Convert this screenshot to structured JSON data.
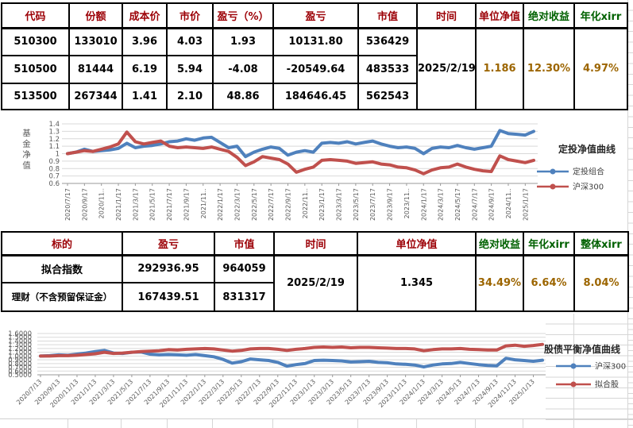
{
  "table1": {
    "headers": [
      "代码",
      "份额",
      "成本价",
      "市价",
      "盈亏（%）",
      "盈亏",
      "市值",
      "时间",
      "单位净值",
      "绝对收益",
      "年化xirr"
    ],
    "rows": [
      [
        "510300",
        "133010",
        "3.96",
        "4.03",
        "1.93",
        "10131.80",
        "536429"
      ],
      [
        "510500",
        "81444",
        "6.19",
        "5.94",
        "-4.08",
        "-20549.64",
        "483533"
      ],
      [
        "513500",
        "267344",
        "1.41",
        "2.10",
        "48.86",
        "184646.45",
        "562543"
      ]
    ],
    "merged": {
      "time": "2025/2/19",
      "unit_nav": "1.186",
      "abs_return": "12.30%",
      "xirr": "4.97%"
    }
  },
  "table2": {
    "headers": [
      "标的",
      "盈亏",
      "市值",
      "时间",
      "单位净值",
      "绝对收益",
      "年化xirr",
      "整体xirr"
    ],
    "rows": [
      [
        "拟合指数",
        "292936.95",
        "964059"
      ],
      [
        "理财（不含预留保证金）",
        "167439.51",
        "831317"
      ]
    ],
    "merged": {
      "time": "2025/2/19",
      "unit_nav": "1.345",
      "abs_return": "34.49%",
      "xirr": "6.64%",
      "overall_xirr": "8.04%"
    }
  },
  "colors": {
    "header_pink_bg": "#FFC7CE",
    "header_pink_text": "#9C0006",
    "header_green_bg": "#C6EFCE",
    "header_green_text": "#006100",
    "value_yellow_bg": "#FFEB9C",
    "value_yellow_text": "#9C6500",
    "header_cyan_bg": "#00B0F0",
    "value_lightblue_bg": "#DAE8F1",
    "series_blue": "#4F81BD",
    "series_red": "#C0504D"
  },
  "chart_data": [
    {
      "type": "line",
      "title": "定投净值曲线",
      "y_axis_title": "基金净值",
      "y_range": [
        0.6,
        1.4
      ],
      "y_ticks": [
        "1.4",
        "1.3",
        "1.2",
        "1.1",
        "1",
        "0.9",
        "0.8",
        "0.7",
        "0.6"
      ],
      "x_labels": [
        "2020/7/17",
        "2020/9/17",
        "2020/11..",
        "2021/1/17",
        "2021/3/17",
        "2021/5/17",
        "2021/7/17",
        "2021/9/17",
        "2021/11..",
        "2022/1/17",
        "2022/3/17",
        "2022/5/17",
        "2022/7/17",
        "2022/9/17",
        "2022/11..",
        "2023/1/17",
        "2023/3/17",
        "2023/5/17",
        "2023/7/17",
        "2023/9/17",
        "2023/11..",
        "2024/1/17",
        "2024/3/17",
        "2024/5/17",
        "2024/7/17",
        "2024/9/17",
        "2024/11..",
        "2025/1/17"
      ],
      "legend_position": "right",
      "grid": "horizontal",
      "series": [
        {
          "name": "定投组合",
          "color": "#4F81BD",
          "values": [
            1.0,
            1.02,
            1.06,
            1.03,
            1.04,
            1.05,
            1.07,
            1.14,
            1.08,
            1.1,
            1.11,
            1.13,
            1.16,
            1.17,
            1.2,
            1.18,
            1.21,
            1.22,
            1.15,
            1.08,
            1.1,
            0.96,
            1.02,
            1.06,
            1.09,
            1.07,
            0.98,
            1.02,
            1.04,
            1.02,
            1.14,
            1.15,
            1.14,
            1.16,
            1.13,
            1.15,
            1.17,
            1.13,
            1.1,
            1.08,
            1.09,
            1.07,
            1.0,
            1.07,
            1.09,
            1.08,
            1.11,
            1.08,
            1.06,
            1.08,
            1.1,
            1.31,
            1.27,
            1.26,
            1.25,
            1.3
          ]
        },
        {
          "name": "沪深300",
          "color": "#C0504D",
          "values": [
            1.0,
            1.02,
            1.04,
            1.03,
            1.06,
            1.09,
            1.13,
            1.29,
            1.16,
            1.13,
            1.15,
            1.17,
            1.1,
            1.08,
            1.09,
            1.08,
            1.07,
            1.09,
            1.06,
            1.03,
            0.95,
            0.84,
            0.89,
            0.96,
            0.94,
            0.92,
            0.86,
            0.75,
            0.79,
            0.82,
            0.91,
            0.92,
            0.91,
            0.9,
            0.87,
            0.88,
            0.89,
            0.86,
            0.85,
            0.82,
            0.81,
            0.78,
            0.73,
            0.78,
            0.81,
            0.82,
            0.86,
            0.82,
            0.79,
            0.77,
            0.76,
            0.97,
            0.92,
            0.9,
            0.88,
            0.91
          ]
        }
      ]
    },
    {
      "type": "line",
      "title": "股债平衡净值曲线",
      "y_range": [
        0.5,
        1.6
      ],
      "y_ticks": [
        "1.6000",
        "1.5000",
        "1.4000",
        "1.3000",
        "1.2000",
        "1.1000",
        "1.0000",
        "0.9000",
        "0.8000",
        "0.7000",
        "0.6000",
        "0.5000"
      ],
      "x_labels": [
        "2020/7/13",
        "2020/9/13",
        "2020/11/13",
        "2021/1/13",
        "2021/3/13",
        "2021/5/13",
        "2021/7/13",
        "2021/9/13",
        "2021/11/13",
        "2022/1/13",
        "2022/3/13",
        "2022/5/13",
        "2022/7/13",
        "2022/9/13",
        "2022/11/13",
        "2023/1/13",
        "2023/3/13",
        "2023/5/13",
        "2023/7/13",
        "2023/9/13",
        "2023/11/13",
        "2024/1/13",
        "2024/3/13",
        "2024/5/13",
        "2024/7/13",
        "2024/9/13",
        "2024/11/13",
        "2025/1/13"
      ],
      "legend_position": "right",
      "grid": "horizontal",
      "series": [
        {
          "name": "沪深300",
          "color": "#4F81BD",
          "values": [
            1.0,
            1.01,
            1.03,
            1.02,
            1.05,
            1.08,
            1.12,
            1.15,
            1.08,
            1.07,
            1.1,
            1.11,
            1.05,
            1.03,
            1.04,
            1.03,
            1.02,
            1.04,
            1.01,
            0.98,
            0.91,
            0.81,
            0.85,
            0.92,
            0.9,
            0.88,
            0.83,
            0.73,
            0.77,
            0.8,
            0.88,
            0.89,
            0.88,
            0.87,
            0.84,
            0.85,
            0.86,
            0.83,
            0.82,
            0.79,
            0.78,
            0.76,
            0.71,
            0.76,
            0.79,
            0.8,
            0.83,
            0.8,
            0.77,
            0.75,
            0.74,
            0.94,
            0.9,
            0.88,
            0.86,
            0.89
          ]
        },
        {
          "name": "拟合股",
          "color": "#C0504D",
          "values": [
            1.0,
            1.0,
            1.01,
            1.01,
            1.02,
            1.04,
            1.06,
            1.1,
            1.07,
            1.08,
            1.1,
            1.12,
            1.13,
            1.14,
            1.17,
            1.16,
            1.18,
            1.19,
            1.2,
            1.19,
            1.16,
            1.13,
            1.15,
            1.19,
            1.2,
            1.2,
            1.18,
            1.15,
            1.18,
            1.2,
            1.23,
            1.24,
            1.23,
            1.24,
            1.22,
            1.23,
            1.23,
            1.22,
            1.21,
            1.2,
            1.2,
            1.19,
            1.14,
            1.17,
            1.19,
            1.19,
            1.2,
            1.18,
            1.17,
            1.16,
            1.16,
            1.27,
            1.29,
            1.26,
            1.28,
            1.31
          ]
        }
      ]
    }
  ]
}
